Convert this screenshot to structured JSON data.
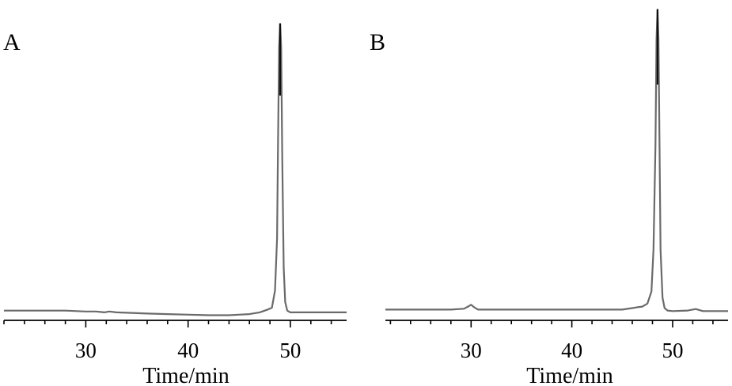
{
  "chart_data": [
    {
      "type": "line",
      "panel_label": "A",
      "xlabel": "Time/min",
      "ylabel": "",
      "xlim": [
        22,
        55.5
      ],
      "xticks_major": [
        30,
        40,
        50
      ],
      "xticks_minor_step": 2,
      "ylim": [
        -0.02,
        1.0
      ],
      "series": [
        {
          "x": [
            22,
            25,
            28,
            30,
            31,
            31.8,
            32.3,
            33,
            36,
            38,
            40,
            42,
            44,
            45,
            46,
            47,
            47.8,
            48.2,
            48.5,
            48.7,
            48.8,
            48.9,
            49.0,
            49.1,
            49.2,
            49.35,
            49.5,
            49.7,
            50.0,
            51,
            53,
            55.5
          ],
          "y": [
            0.0,
            0.0,
            0.0,
            -0.003,
            -0.003,
            -0.006,
            -0.003,
            -0.006,
            -0.01,
            -0.012,
            -0.014,
            -0.016,
            -0.016,
            -0.014,
            -0.012,
            -0.006,
            0.004,
            0.01,
            0.07,
            0.25,
            0.6,
            0.92,
            1.0,
            0.92,
            0.55,
            0.15,
            0.03,
            0.0,
            -0.006,
            -0.006,
            -0.006,
            -0.006
          ]
        }
      ]
    },
    {
      "type": "line",
      "panel_label": "B",
      "xlabel": "Time/min",
      "ylabel": "",
      "xlim": [
        21.5,
        55.5
      ],
      "xticks_major": [
        30,
        40,
        50
      ],
      "xticks_minor_step": 2,
      "ylim": [
        -0.02,
        1.0
      ],
      "series": [
        {
          "x": [
            21.5,
            25,
            28,
            29.3,
            29.7,
            30.0,
            30.3,
            30.7,
            33,
            36,
            40,
            43,
            45,
            46,
            46.5,
            47,
            47.5,
            47.9,
            48.1,
            48.3,
            48.4,
            48.5,
            48.6,
            48.7,
            48.8,
            49.0,
            49.2,
            49.5,
            50,
            51.5,
            52.3,
            53,
            55.5
          ],
          "y": [
            0.0,
            0.0,
            0.0,
            0.003,
            0.01,
            0.016,
            0.008,
            0.0,
            0.0,
            0.0,
            0.0,
            0.0,
            0.0,
            0.005,
            0.008,
            0.01,
            0.02,
            0.06,
            0.2,
            0.55,
            0.9,
            1.0,
            0.9,
            0.55,
            0.2,
            0.04,
            0.005,
            -0.003,
            -0.005,
            -0.003,
            0.002,
            -0.005,
            -0.005
          ]
        }
      ]
    }
  ]
}
